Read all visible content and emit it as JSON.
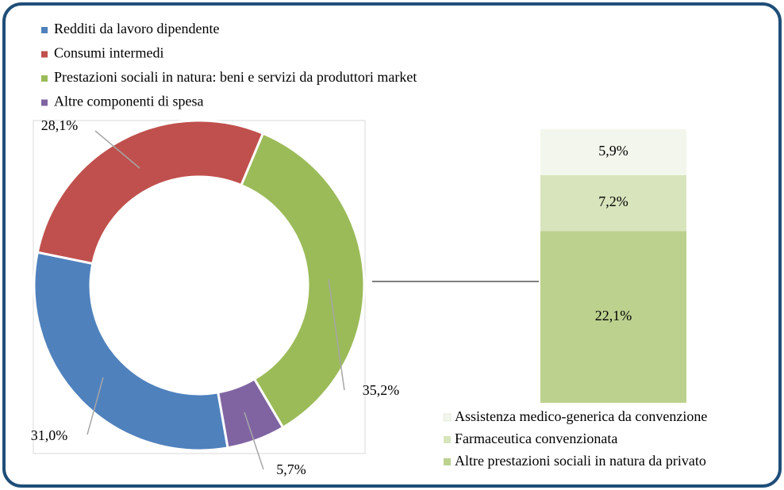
{
  "chart_data": [
    {
      "type": "donut",
      "categories": [
        "Redditi da lavoro dipendente",
        "Consumi intermedi",
        "Prestazioni sociali in natura: beni e servizi da produttori market",
        "Altre componenti di spesa"
      ],
      "values": [
        31.0,
        28.1,
        35.2,
        5.7
      ],
      "value_labels": [
        "31,0%",
        "28,1%",
        "35,2%",
        "5,7%"
      ],
      "colors": [
        "#4f81bd",
        "#c0504d",
        "#9bbb59",
        "#8064a2"
      ]
    },
    {
      "type": "stacked_bar",
      "series": [
        {
          "name": "Assistenza medico-generica da convenzione",
          "color": "#f3f6ec",
          "values": [
            5.9
          ],
          "value_labels": [
            "5,9%"
          ]
        },
        {
          "name": "Farmaceutica convenzionata",
          "color": "#d8e4bc",
          "values": [
            7.2
          ],
          "value_labels": [
            "7,2%"
          ]
        },
        {
          "name": "Altre prestazioni sociali in natura da privato",
          "color": "#bcd18e",
          "values": [
            22.1
          ],
          "value_labels": [
            "22,1%"
          ]
        }
      ]
    }
  ]
}
